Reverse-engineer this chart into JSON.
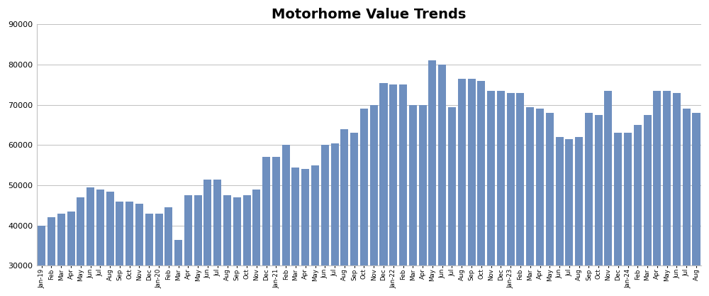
{
  "title": "Motorhome Value Trends",
  "bar_color": "#6e8fbf",
  "background_color": "#ffffff",
  "ylim": [
    30000,
    90000
  ],
  "yticks": [
    30000,
    40000,
    50000,
    60000,
    70000,
    80000,
    90000
  ],
  "values": [
    40000,
    42000,
    43000,
    43500,
    47000,
    49500,
    49000,
    48500,
    46000,
    46000,
    45500,
    43000,
    43000,
    44500,
    36500,
    47500,
    47500,
    51500,
    51500,
    47500,
    47000,
    47500,
    49000,
    57000,
    57000,
    60000,
    54500,
    54000,
    55000,
    60000,
    60500,
    64000,
    63000,
    69000,
    70000,
    75500,
    75000,
    75000,
    70000,
    70000,
    81000,
    80000,
    69500,
    76500,
    76500,
    76000,
    73500,
    73500,
    73000,
    73000,
    69500,
    69000,
    68000,
    62000,
    61500,
    62000,
    68000,
    67500,
    73500,
    63000,
    63000,
    65000,
    67500,
    73500,
    73500,
    73000,
    69000,
    68000
  ],
  "tick_labels": [
    "Jan-19",
    "Feb",
    "Mar",
    "Apr",
    "May",
    "Jun",
    "Jul",
    "Aug",
    "Sep",
    "Oct",
    "Nov",
    "Dec",
    "Jan-20",
    "Feb",
    "Mar",
    "Apr",
    "May",
    "Jun",
    "Jul",
    "Aug",
    "Sep",
    "Oct",
    "Nov",
    "Dec",
    "Jan-21",
    "Feb",
    "Mar",
    "Apr",
    "May",
    "Jun",
    "Jul",
    "Aug",
    "Sep",
    "Oct",
    "Nov",
    "Dec",
    "Jan-22",
    "Feb",
    "Mar",
    "Apr",
    "May",
    "Jun",
    "Jul",
    "Aug",
    "Sep",
    "Oct",
    "Nov",
    "Dec",
    "Jan-23",
    "Feb",
    "Mar",
    "Apr",
    "May",
    "Jun",
    "Jul",
    "Aug",
    "Sep",
    "Oct",
    "Nov",
    "Dec",
    "Jan-24",
    "Feb",
    "Mar",
    "Apr",
    "May",
    "Jun",
    "Jul",
    "Aug"
  ]
}
